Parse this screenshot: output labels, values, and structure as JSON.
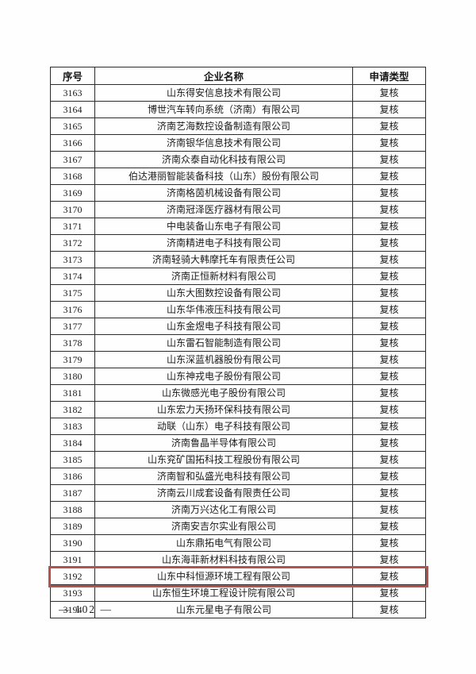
{
  "page": {
    "footer_page_number": "— 102 —"
  },
  "table": {
    "headers": [
      "序号",
      "企业名称",
      "申请类型"
    ],
    "highlighted_no": "3192",
    "highlight_color": "#b5524e",
    "rows": [
      {
        "no": "3163",
        "name": "山东得安信息技术有限公司",
        "type": "复核"
      },
      {
        "no": "3164",
        "name": "博世汽车转向系统（济南）有限公司",
        "type": "复核"
      },
      {
        "no": "3165",
        "name": "济南艺海数控设备制造有限公司",
        "type": "复核"
      },
      {
        "no": "3166",
        "name": "济南银华信息技术有限公司",
        "type": "复核"
      },
      {
        "no": "3167",
        "name": "济南众泰自动化科技有限公司",
        "type": "复核"
      },
      {
        "no": "3168",
        "name": "伯达港丽智能装备科技（山东）股份有限公司",
        "type": "复核"
      },
      {
        "no": "3169",
        "name": "济南格茵机械设备有限公司",
        "type": "复核"
      },
      {
        "no": "3170",
        "name": "济南冠泽医疗器材有限公司",
        "type": "复核"
      },
      {
        "no": "3171",
        "name": "中电装备山东电子有限公司",
        "type": "复核"
      },
      {
        "no": "3172",
        "name": "济南精进电子科技有限公司",
        "type": "复核"
      },
      {
        "no": "3173",
        "name": "济南轻骑大韩摩托车有限责任公司",
        "type": "复核"
      },
      {
        "no": "3174",
        "name": "济南正恒新材料有限公司",
        "type": "复核"
      },
      {
        "no": "3175",
        "name": "山东大图数控设备有限公司",
        "type": "复核"
      },
      {
        "no": "3176",
        "name": "山东华伟液压科技有限公司",
        "type": "复核"
      },
      {
        "no": "3177",
        "name": "山东金煜电子科技有限公司",
        "type": "复核"
      },
      {
        "no": "3178",
        "name": "山东雷石智能制造有限公司",
        "type": "复核"
      },
      {
        "no": "3179",
        "name": "山东深蓝机器股份有限公司",
        "type": "复核"
      },
      {
        "no": "3180",
        "name": "山东神戎电子股份有限公司",
        "type": "复核"
      },
      {
        "no": "3181",
        "name": "山东微感光电子股份有限公司",
        "type": "复核"
      },
      {
        "no": "3182",
        "name": "山东宏力天扬环保科技有限公司",
        "type": "复核"
      },
      {
        "no": "3183",
        "name": "动联（山东）电子科技有限公司",
        "type": "复核"
      },
      {
        "no": "3184",
        "name": "济南鲁晶半导体有限公司",
        "type": "复核"
      },
      {
        "no": "3185",
        "name": "山东兖矿国拓科技工程股份有限公司",
        "type": "复核"
      },
      {
        "no": "3186",
        "name": "济南智和弘盛光电科技有限公司",
        "type": "复核"
      },
      {
        "no": "3187",
        "name": "济南云川成套设备有限责任公司",
        "type": "复核"
      },
      {
        "no": "3188",
        "name": "济南万兴达化工有限公司",
        "type": "复核"
      },
      {
        "no": "3189",
        "name": "济南安吉尔实业有限公司",
        "type": "复核"
      },
      {
        "no": "3190",
        "name": "山东鼎拓电气有限公司",
        "type": "复核"
      },
      {
        "no": "3191",
        "name": "山东海菲新材料科技有限公司",
        "type": "复核"
      },
      {
        "no": "3192",
        "name": "山东中科恒源环境工程有限公司",
        "type": "复核"
      },
      {
        "no": "3193",
        "name": "山东恒生环境工程设计院有限公司",
        "type": "复核"
      },
      {
        "no": "3194",
        "name": "山东元星电子有限公司",
        "type": "复核"
      }
    ]
  }
}
